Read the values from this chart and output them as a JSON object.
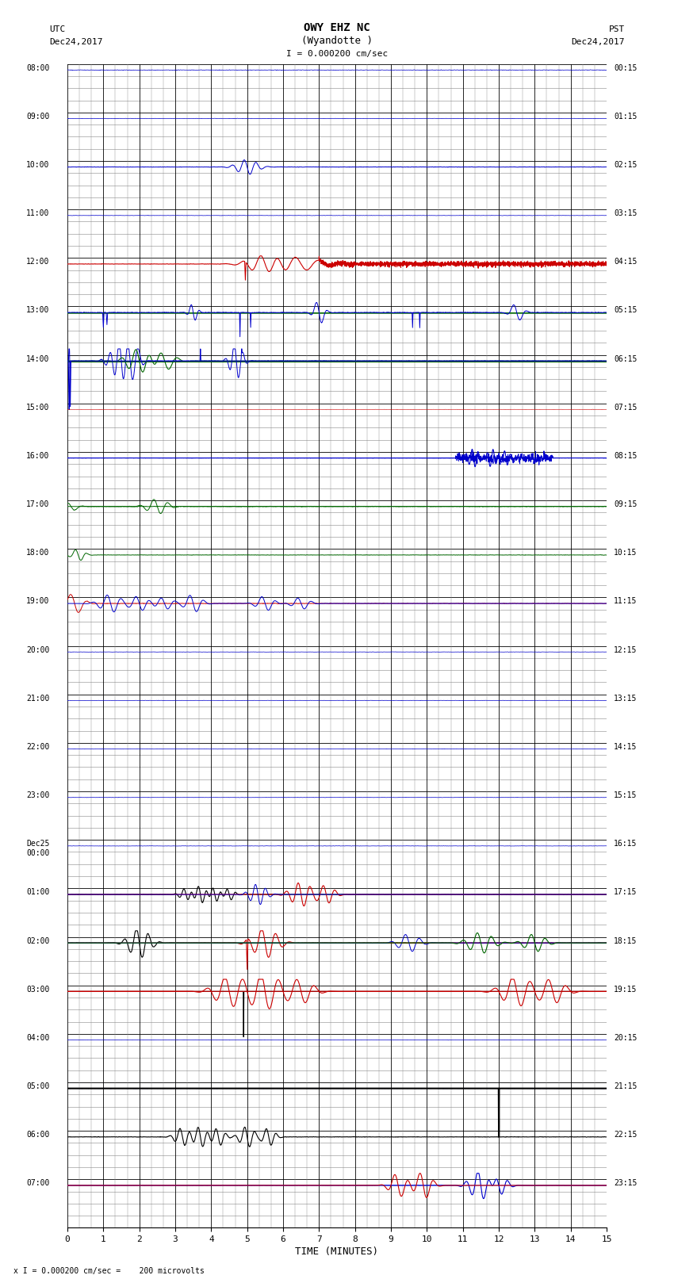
{
  "title_line1": "OWY EHZ NC",
  "title_line2": "(Wyandotte )",
  "scale_label": "I = 0.000200 cm/sec",
  "bottom_label": "x I = 0.000200 cm/sec =    200 microvolts",
  "xlabel": "TIME (MINUTES)",
  "bg_color": "#ffffff",
  "grid_major_color": "#000000",
  "grid_minor_color": "#999999",
  "n_hours": 24,
  "sub_rows": 4,
  "x_min": 0,
  "x_max": 15,
  "figwidth": 8.5,
  "figheight": 16.13,
  "left_times_utc": [
    "08:00",
    "09:00",
    "10:00",
    "11:00",
    "12:00",
    "13:00",
    "14:00",
    "15:00",
    "16:00",
    "17:00",
    "18:00",
    "19:00",
    "20:00",
    "21:00",
    "22:00",
    "23:00",
    "Dec25\n00:00",
    "01:00",
    "02:00",
    "03:00",
    "04:00",
    "05:00",
    "06:00",
    "07:00"
  ],
  "right_times_pst": [
    "00:15",
    "01:15",
    "02:15",
    "03:15",
    "04:15",
    "05:15",
    "06:15",
    "07:15",
    "08:15",
    "09:15",
    "10:15",
    "11:15",
    "12:15",
    "13:15",
    "14:15",
    "15:15",
    "16:15",
    "17:15",
    "18:15",
    "19:15",
    "20:15",
    "21:15",
    "22:15",
    "23:15"
  ]
}
